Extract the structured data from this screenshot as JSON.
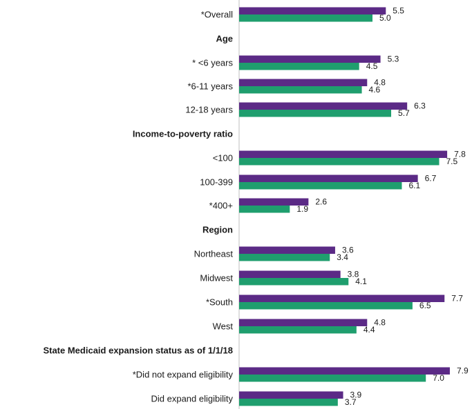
{
  "chart_data": {
    "type": "bar",
    "orientation": "horizontal",
    "grid": false,
    "legend": "none",
    "xlim": [
      0,
      8.3
    ],
    "colors": {
      "series1": "#5b2a86",
      "series2": "#1f9e6e"
    },
    "rows": [
      {
        "kind": "category",
        "label": "*Overall",
        "values": [
          5.5,
          5.0
        ],
        "value_labels": [
          "5.5",
          "5.0"
        ]
      },
      {
        "kind": "section",
        "label": "Age"
      },
      {
        "kind": "category",
        "label": "* <6 years",
        "values": [
          5.3,
          4.5
        ],
        "value_labels": [
          "5.3",
          "4.5"
        ]
      },
      {
        "kind": "category",
        "label": "*6-11 years",
        "values": [
          4.8,
          4.6
        ],
        "value_labels": [
          "4.8",
          "4.6"
        ]
      },
      {
        "kind": "category",
        "label": "12-18 years",
        "values": [
          6.3,
          5.7
        ],
        "value_labels": [
          "6.3",
          "5.7"
        ]
      },
      {
        "kind": "section",
        "label": "Income-to-poverty ratio"
      },
      {
        "kind": "category",
        "label": "<100",
        "values": [
          7.8,
          7.5
        ],
        "value_labels": [
          "7.8",
          "7.5"
        ]
      },
      {
        "kind": "category",
        "label": "100-399",
        "values": [
          6.7,
          6.1
        ],
        "value_labels": [
          "6.7",
          "6.1"
        ]
      },
      {
        "kind": "category",
        "label": "*400+",
        "values": [
          2.6,
          1.9
        ],
        "value_labels": [
          "2.6",
          "1.9"
        ]
      },
      {
        "kind": "section",
        "label": "Region"
      },
      {
        "kind": "category",
        "label": "Northeast",
        "values": [
          3.6,
          3.4
        ],
        "value_labels": [
          "3.6",
          "3.4"
        ]
      },
      {
        "kind": "category",
        "label": "Midwest",
        "values": [
          3.8,
          4.1
        ],
        "value_labels": [
          "3.8",
          "4.1"
        ]
      },
      {
        "kind": "category",
        "label": "*South",
        "values": [
          7.7,
          6.5
        ],
        "value_labels": [
          "7.7",
          "6.5"
        ]
      },
      {
        "kind": "category",
        "label": "West",
        "values": [
          4.8,
          4.4
        ],
        "value_labels": [
          "4.8",
          "4.4"
        ]
      },
      {
        "kind": "section",
        "label": "State Medicaid expansion status as of 1/1/18"
      },
      {
        "kind": "category",
        "label": "*Did not expand eligibility",
        "values": [
          7.9,
          7.0
        ],
        "value_labels": [
          "7.9",
          "7.0"
        ]
      },
      {
        "kind": "category",
        "label": "Did expand eligibility",
        "values": [
          3.9,
          3.7
        ],
        "value_labels": [
          "3.9",
          "3.7"
        ]
      }
    ]
  }
}
